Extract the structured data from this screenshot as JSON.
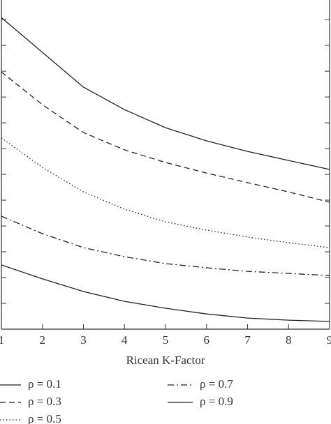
{
  "chart_data": {
    "type": "line",
    "x_label": "Ricean K-Factor",
    "x": [
      1,
      2,
      3,
      4,
      5,
      6,
      7,
      8,
      9
    ],
    "xlim": [
      1,
      9
    ],
    "xticks": [
      1,
      2,
      3,
      4,
      5,
      6,
      7,
      8,
      9
    ],
    "ylim": [
      0,
      12.76
    ],
    "yticks": [
      1,
      2,
      3,
      4,
      5,
      6,
      7,
      8,
      9,
      10,
      11,
      12
    ],
    "series": [
      {
        "name": "ρ = 0.1",
        "color": "#222222",
        "dash": "solid",
        "values": [
          12.08,
          10.73,
          9.38,
          8.51,
          7.81,
          7.3,
          6.89,
          6.54,
          6.19
        ]
      },
      {
        "name": "ρ = 0.3",
        "color": "#222222",
        "dash": "dashed",
        "values": [
          9.97,
          8.7,
          7.62,
          6.95,
          6.46,
          6.05,
          5.68,
          5.32,
          4.92
        ]
      },
      {
        "name": "ρ = 0.5",
        "color": "#222222",
        "dash": "dotted",
        "values": [
          7.41,
          6.27,
          5.32,
          4.65,
          4.16,
          3.84,
          3.57,
          3.35,
          3.16
        ]
      },
      {
        "name": "ρ = 0.7",
        "color": "#222222",
        "dash": "dashdot",
        "values": [
          4.38,
          3.7,
          3.16,
          2.81,
          2.54,
          2.38,
          2.24,
          2.16,
          2.08
        ]
      },
      {
        "name": "ρ = 0.9",
        "color": "#222222",
        "dash": "solid",
        "values": [
          2.49,
          1.95,
          1.46,
          1.08,
          0.81,
          0.59,
          0.43,
          0.35,
          0.3
        ]
      }
    ]
  }
}
